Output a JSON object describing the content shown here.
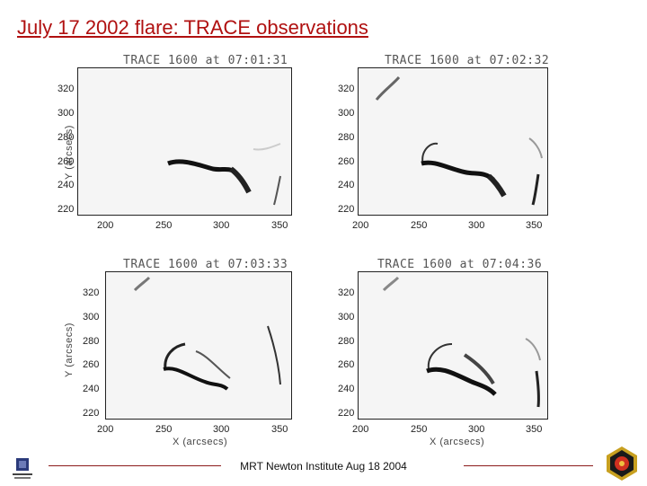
{
  "slide": {
    "title": "July 17 2002 flare: TRACE observations",
    "footer": "MRT Newton Institute Aug 18 2004"
  },
  "panels": [
    {
      "title": "TRACE 1600 at 07:01:31"
    },
    {
      "title": "TRACE 1600 at 07:02:32"
    },
    {
      "title": "TRACE 1600 at 07:03:33"
    },
    {
      "title": "TRACE 1600 at 07:04:36"
    }
  ],
  "axes": {
    "y_ticks": [
      "320",
      "300",
      "280",
      "260",
      "240",
      "220"
    ],
    "x_ticks": [
      "200",
      "250",
      "300",
      "350"
    ],
    "x_label": "X (arcsecs)",
    "y_label": "Y (arcsecs)"
  },
  "icons": {
    "left_logo": "institute-crest-logo",
    "right_logo": "mission-patch-logo"
  },
  "colors": {
    "title": "#b01010",
    "footer_rule": "#8b1a1a"
  }
}
